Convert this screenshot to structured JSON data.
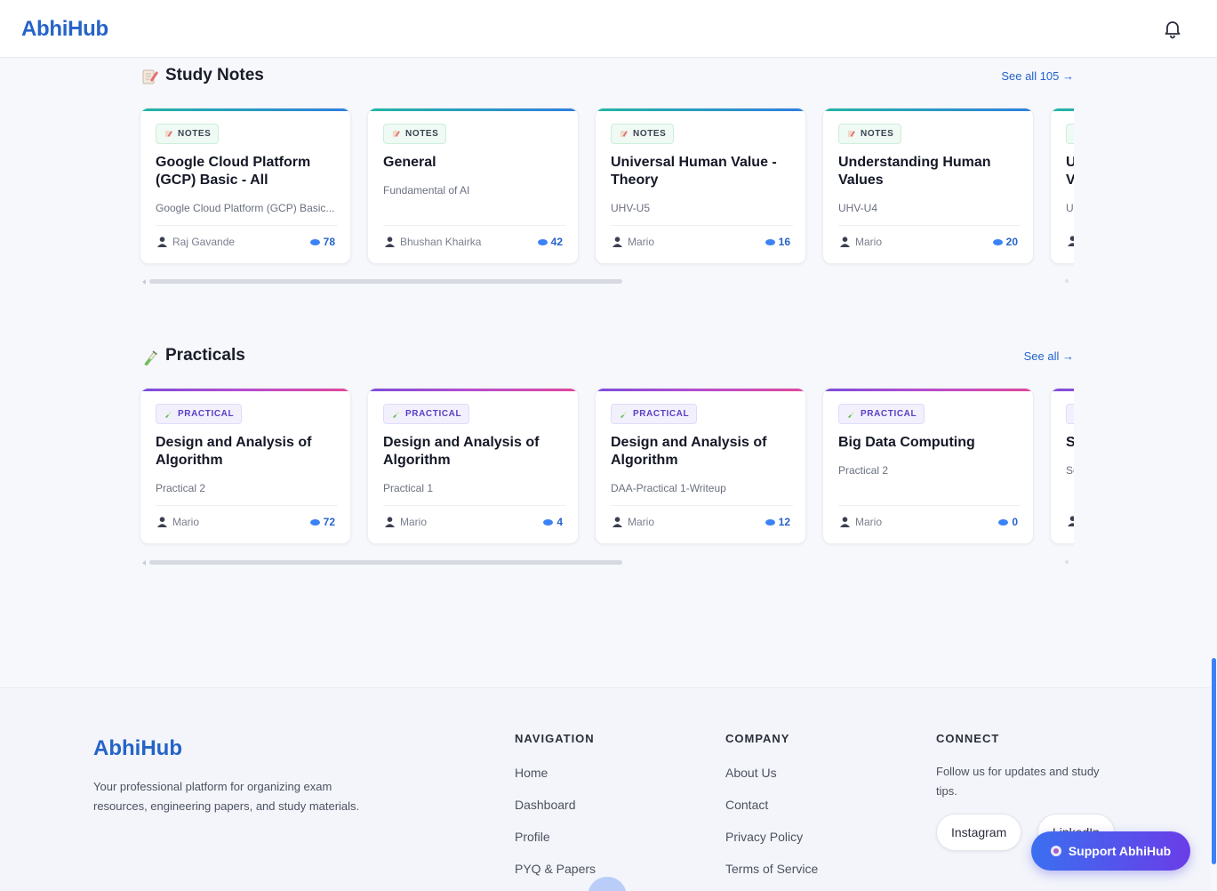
{
  "app": {
    "logo": "AbhiHub"
  },
  "header": {
    "bell_icon": "bell-icon"
  },
  "study_notes": {
    "title": "Study Notes",
    "icon": "memo-icon",
    "see_all": "See all 105 →",
    "badge": "NOTES",
    "cards": [
      {
        "title": "Google Cloud Platform (GCP) Basic - All",
        "subtitle": "Google Cloud Platform (GCP) Basic...",
        "author": "Raj Gavande",
        "views": "78"
      },
      {
        "title": "General",
        "subtitle": "Fundamental of AI",
        "author": "Bhushan Khairka",
        "views": "42"
      },
      {
        "title": "Universal Human Value - Theory",
        "subtitle": "UHV-U5",
        "author": "Mario",
        "views": "16"
      },
      {
        "title": "Understanding Human Values",
        "subtitle": "UHV-U4",
        "author": "Mario",
        "views": "20"
      },
      {
        "title": "U V",
        "subtitle": "U",
        "author": "",
        "views": ""
      }
    ]
  },
  "practicals": {
    "title": "Practicals",
    "icon": "test-tube-icon",
    "see_all": "See all →",
    "badge": "PRACTICAL",
    "cards": [
      {
        "title": "Design and Analysis of Algorithm",
        "subtitle": "Practical 2",
        "author": "Mario",
        "views": "72"
      },
      {
        "title": "Design and Analysis of Algorithm",
        "subtitle": "Practical 1",
        "author": "Mario",
        "views": "4"
      },
      {
        "title": "Design and Analysis of Algorithm",
        "subtitle": "DAA-Practical 1-Writeup",
        "author": "Mario",
        "views": "12"
      },
      {
        "title": "Big Data Computing",
        "subtitle": "Practical 2",
        "author": "Mario",
        "views": "0"
      },
      {
        "title": "S",
        "subtitle": "Sc",
        "author": "",
        "views": ""
      }
    ]
  },
  "footer": {
    "logo": "AbhiHub",
    "description": "Your professional platform for organizing exam resources, engineering papers, and study materials.",
    "navigation": {
      "title": "NAVIGATION",
      "links": [
        "Home",
        "Dashboard",
        "Profile",
        "PYQ & Papers"
      ]
    },
    "company": {
      "title": "COMPANY",
      "links": [
        "About Us",
        "Contact",
        "Privacy Policy",
        "Terms of Service"
      ]
    },
    "connect": {
      "title": "CONNECT",
      "text": "Follow us for updates and study tips.",
      "buttons": [
        "Instagram",
        "LinkedIn"
      ]
    }
  },
  "support_button": "Support AbhiHub",
  "colors": {
    "brand": "#2563c9",
    "accent_gradient_start": "#3b6ff0",
    "accent_gradient_end": "#6a3de8"
  }
}
